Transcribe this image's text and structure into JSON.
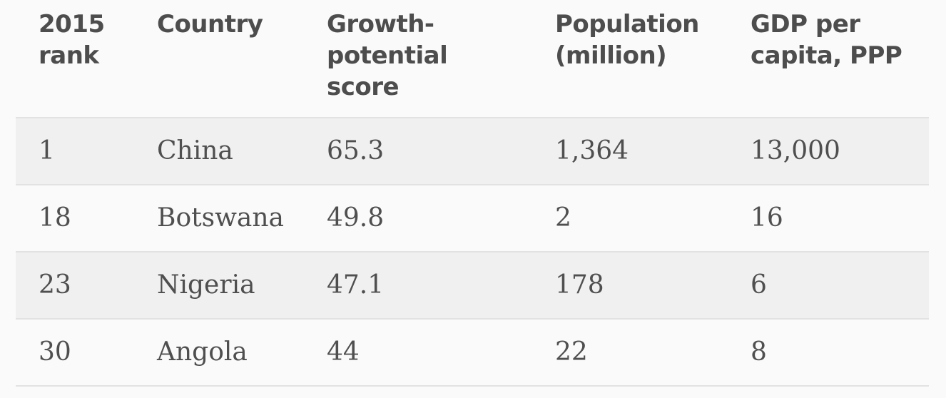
{
  "chart_data": {
    "type": "table",
    "columns": [
      "2015 rank",
      "Country",
      "Growth-potential score",
      "Population (million)",
      "GDP per capita, PPP"
    ],
    "header_lines": [
      [
        "2015",
        "rank"
      ],
      [
        "Country"
      ],
      [
        "Growth-",
        "potential",
        "score"
      ],
      [
        "Population",
        "(million)"
      ],
      [
        "GDP per",
        "capita, PPP"
      ]
    ],
    "rows": [
      [
        "1",
        "China",
        "65.3",
        "1,364",
        "13,000"
      ],
      [
        "18",
        "Botswana",
        "49.8",
        "2",
        "16"
      ],
      [
        "23",
        "Nigeria",
        "47.1",
        "178",
        "6"
      ],
      [
        "30",
        "Angola",
        "44",
        "22",
        "8"
      ]
    ]
  },
  "colors": {
    "background": "#fafafa",
    "shaded_row": "#f0f0f0",
    "divider": "#e2e2e2",
    "text": "#4d4d4d"
  }
}
